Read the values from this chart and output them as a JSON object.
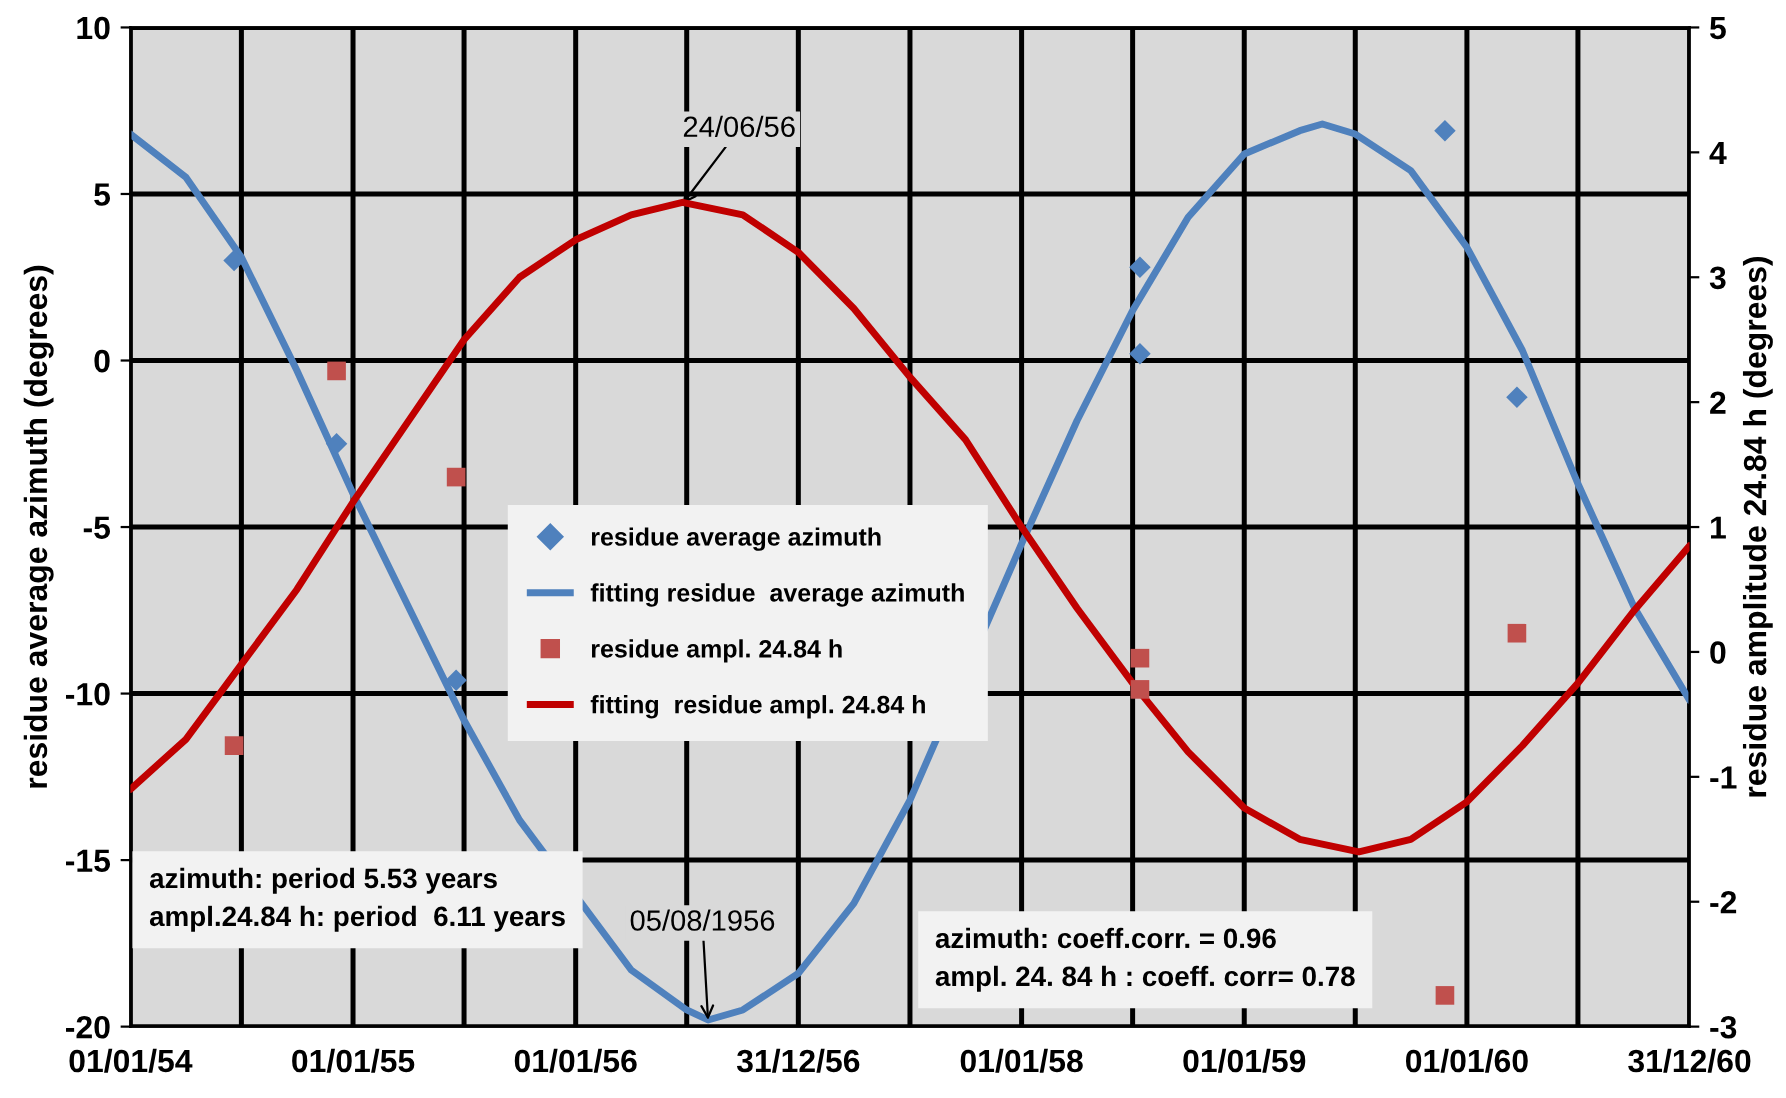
{
  "chart_data": {
    "type": "scatter",
    "ylabel": "residue average azimuth (degrees)",
    "y2label": "residue amplitude 24.84 h (degrees)",
    "xlim": [
      "1954-01-01",
      "1960-12-31"
    ],
    "xticks": [
      {
        "value": "1954-01-01",
        "label": "01/01/54"
      },
      {
        "value": "1954-07-02",
        "label": null
      },
      {
        "value": "1955-01-01",
        "label": "01/01/55"
      },
      {
        "value": "1955-07-02",
        "label": null
      },
      {
        "value": "1956-01-01",
        "label": "01/01/56"
      },
      {
        "value": "1956-07-01",
        "label": null
      },
      {
        "value": "1956-12-31",
        "label": "31/12/56"
      },
      {
        "value": "1957-07-02",
        "label": null
      },
      {
        "value": "1958-01-01",
        "label": "01/01/58"
      },
      {
        "value": "1958-07-02",
        "label": null
      },
      {
        "value": "1959-01-01",
        "label": "01/01/59"
      },
      {
        "value": "1959-07-02",
        "label": null
      },
      {
        "value": "1960-01-01",
        "label": "01/01/60"
      },
      {
        "value": "1960-07-01",
        "label": null
      },
      {
        "value": "1960-12-31",
        "label": "31/12/60"
      }
    ],
    "ylim": [
      -20,
      10
    ],
    "yticks": [
      -20,
      -15,
      -10,
      -5,
      0,
      5,
      10
    ],
    "y2lim": [
      -3,
      5
    ],
    "y2ticks": [
      -3,
      -2,
      -1,
      0,
      1,
      2,
      3,
      4,
      5
    ],
    "grid": true,
    "legend": "center",
    "series": [
      {
        "name": "residue average azimuth",
        "marker": "diamond",
        "color": "#4f81bd",
        "x": [
          "1954-06-20",
          "1954-12-05",
          "1955-06-19",
          "1958-07-14",
          "1958-07-14",
          "1959-11-26",
          "1960-03-23"
        ],
        "values": [
          3.0,
          -2.5,
          -9.6,
          2.8,
          0.2,
          6.9,
          -1.1
        ]
      },
      {
        "name": "fitting residue  average azimuth",
        "type": "line",
        "marker": "none",
        "color": "#4f81bd",
        "x": [
          "1954-01-01",
          "1954-04-02",
          "1954-07-02",
          "1954-10-01",
          "1955-01-01",
          "1955-04-02",
          "1955-07-02",
          "1955-10-01",
          "1956-04-01",
          "1956-07-01",
          "1956-08-05",
          "1956-10-01",
          "1956-12-31",
          "1957-04-01",
          "1957-07-02",
          "1958-01-01",
          "1958-04-02",
          "1958-07-02",
          "1958-10-01",
          "1959-01-01",
          "1959-04-02",
          "1959-05-09",
          "1959-07-02",
          "1959-10-01",
          "1960-01-01",
          "1960-04-01",
          "1960-07-01",
          "1960-10-01",
          "1960-12-31"
        ],
        "values": [
          6.8,
          5.5,
          3.1,
          -0.3,
          -4.0,
          -7.4,
          -10.8,
          -13.8,
          -18.3,
          -19.5,
          -19.8,
          -19.5,
          -18.4,
          -16.3,
          -13.2,
          -5.5,
          -1.8,
          1.5,
          4.3,
          6.2,
          6.9,
          7.1,
          6.8,
          5.7,
          3.4,
          0.3,
          -3.7,
          -7.4,
          -10.2
        ]
      },
      {
        "name": "residue ampl. 24.84 h",
        "marker": "square",
        "axis": "y2",
        "color": "#c0504d",
        "x": [
          "1954-12-05",
          "1955-06-19",
          "1954-06-20",
          "1958-07-14",
          "1958-07-14",
          "1960-03-23",
          "1959-11-26"
        ],
        "values": [
          2.25,
          1.4,
          -0.75,
          -0.05,
          -0.3,
          0.15,
          -2.75
        ]
      },
      {
        "name": "fitting  residue ampl. 24.84 h",
        "type": "line",
        "marker": "none",
        "axis": "y2",
        "color": "#c00000",
        "x": [
          "1954-01-01",
          "1954-04-02",
          "1954-07-02",
          "1954-10-01",
          "1955-01-01",
          "1955-04-02",
          "1955-07-02",
          "1955-10-01",
          "1956-01-01",
          "1956-04-01",
          "1956-06-24",
          "1956-10-01",
          "1956-12-31",
          "1957-04-01",
          "1957-07-02",
          "1957-10-01",
          "1958-01-01",
          "1958-04-02",
          "1958-07-02",
          "1958-10-01",
          "1959-01-01",
          "1959-04-02",
          "1959-07-08",
          "1959-10-01",
          "1960-01-01",
          "1960-04-01",
          "1960-07-01",
          "1960-10-01",
          "1960-12-31"
        ],
        "values": [
          -1.1,
          -0.7,
          -0.1,
          0.5,
          1.2,
          1.85,
          2.5,
          3.0,
          3.3,
          3.5,
          3.6,
          3.5,
          3.2,
          2.75,
          2.2,
          1.7,
          1.0,
          0.35,
          -0.25,
          -0.8,
          -1.25,
          -1.5,
          -1.6,
          -1.5,
          -1.2,
          -0.75,
          -0.25,
          0.33,
          0.85
        ]
      }
    ],
    "annotations": [
      {
        "text": "24/06/56",
        "x": "1956-06-24",
        "y": 4.7
      },
      {
        "text": "05/08/1956",
        "x": "1956-08-05",
        "y": -19.8
      },
      "azimuth: period 5.53 years\nampl.24.84 h: period  6.11 years",
      "azimuth: coeff.corr. = 0.96\nampl. 24. 84 h : coeff. corr= 0.78"
    ]
  }
}
